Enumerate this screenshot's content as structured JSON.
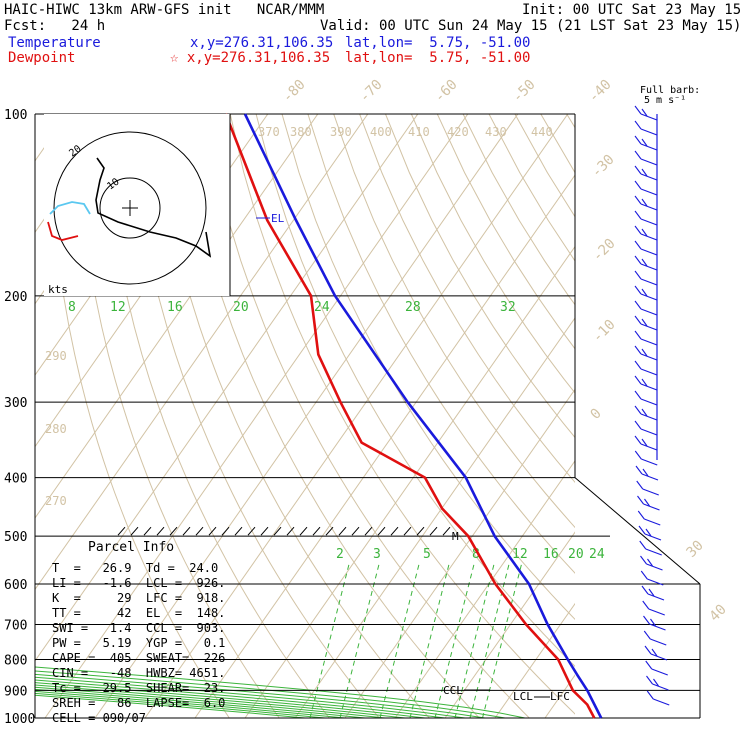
{
  "header": {
    "line1_left": "HAIC-HIWC 13km ARW-GFS init   NCAR/MMM",
    "line1_right": "Init: 00 UTC Sat 23 May 15",
    "line2_left": "Fcst:   24 h",
    "line2_right": "Valid: 00 UTC Sun 24 May 15 (21 LST Sat 23 May 15)",
    "temp_label": "Temperature",
    "temp_xy": "x,y=276.31,106.35",
    "temp_latlon": "lat,lon=  5.75, -51.00",
    "dew_label": "Dewpoint",
    "dew_xy": "☆ x,y=276.31,106.35",
    "dew_latlon": "lat,lon=  5.75, -51.00",
    "barb_label1": "Full barb:",
    "barb_label2": "5 m s⁻¹"
  },
  "chart_data": {
    "type": "line",
    "pressure_levels": [
      100,
      200,
      300,
      400,
      500,
      600,
      700,
      800,
      900,
      1000
    ],
    "pressure_labels": [
      "100",
      "200",
      "300",
      "400",
      "500",
      "600",
      "700",
      "800",
      "900",
      "1000"
    ],
    "top_temp_labels": [
      "-80",
      "-70",
      "-60",
      "-50",
      "-40"
    ],
    "right_temp_labels": [
      "-30",
      "-20",
      "-10",
      "0",
      "30",
      "40"
    ],
    "theta_labels": [
      "370",
      "380",
      "390",
      "400",
      "410",
      "420",
      "430",
      "440"
    ],
    "theta_left_labels": [
      "290",
      "280",
      "270"
    ],
    "moist_adiabat_labels": [
      "8",
      "12",
      "16",
      "20",
      "24",
      "28",
      "32"
    ],
    "mixing_ratio_labels": [
      "2",
      "3",
      "5",
      "8",
      "12",
      "16",
      "20",
      "24"
    ],
    "series": [
      {
        "name": "Temperature",
        "color": "#1a1adc",
        "points": [
          [
            100,
            -80
          ],
          [
            150,
            -66
          ],
          [
            200,
            -55
          ],
          [
            300,
            -32
          ],
          [
            400,
            -13
          ],
          [
            500,
            -5
          ],
          [
            600,
            6
          ],
          [
            700,
            11
          ],
          [
            800,
            17
          ],
          [
            850,
            20
          ],
          [
            900,
            23
          ],
          [
            950,
            25
          ],
          [
            1000,
            26.9
          ]
        ]
      },
      {
        "name": "Dewpoint",
        "color": "#e01010",
        "points": [
          [
            100,
            -88
          ],
          [
            150,
            -78
          ],
          [
            200,
            -65
          ],
          [
            250,
            -66
          ],
          [
            300,
            -60
          ],
          [
            350,
            -54
          ],
          [
            400,
            -30
          ],
          [
            450,
            -25
          ],
          [
            500,
            -16
          ],
          [
            600,
            -8
          ],
          [
            700,
            2
          ],
          [
            800,
            13
          ],
          [
            900,
            17
          ],
          [
            950,
            22
          ],
          [
            1000,
            24.0
          ]
        ]
      }
    ],
    "annotations": [
      "EL",
      "M",
      "CCL",
      "LCL",
      "LFC"
    ],
    "hodograph": {
      "label": "kts",
      "ring_labels": [
        "20",
        "10"
      ]
    }
  },
  "parcel_info": {
    "title": "Parcel Info",
    "rows": [
      "T  =   26.9  Td =  24.0",
      "LI =   -1.6  LCL =  926.",
      "K  =     29  LFC =  918.",
      "TT =     42  EL  =  148.",
      "SWI =   1.4  CCL =  903.",
      "PW =   5.19  YGP =   0.1",
      "CAPE =  405  SWEAT=  226",
      "CIN =   -48  HWBZ= 4651.",
      "Tc =   29.5  SHEAR=  23.",
      "SREH =   86  LAPSE=  6.0",
      "CELL = 090/07"
    ]
  }
}
